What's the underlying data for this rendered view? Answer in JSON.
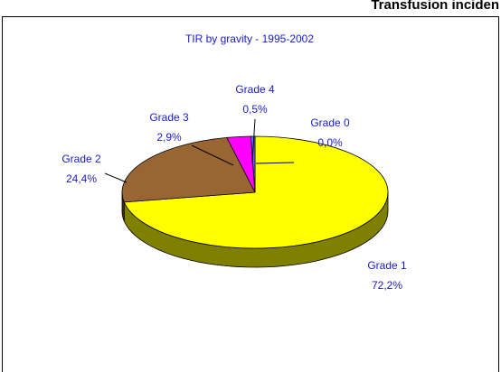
{
  "header": {
    "title": "Transfusion inciden"
  },
  "chart_data": {
    "type": "pie3d",
    "title": "TIR by gravity - 1995-2002",
    "categories": [
      "Grade 0",
      "Grade 1",
      "Grade 2",
      "Grade 3",
      "Grade 4"
    ],
    "values": [
      0.0,
      72.2,
      24.4,
      2.9,
      0.5
    ],
    "value_labels": [
      "0,0%",
      "72,2%",
      "24,4%",
      "2,9%",
      "0,5%"
    ],
    "colors": [
      "#3333cc",
      "#ffff00",
      "#996633",
      "#ff00ff",
      "#6666ff"
    ]
  }
}
